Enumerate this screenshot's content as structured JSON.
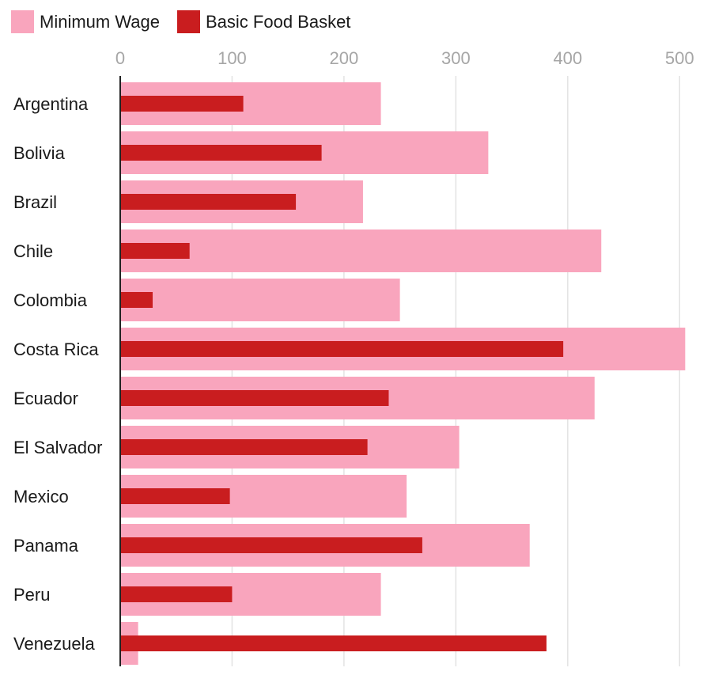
{
  "chart_data": {
    "type": "bar",
    "orientation": "horizontal",
    "categories": [
      "Argentina",
      "Bolivia",
      "Brazil",
      "Chile",
      "Colombia",
      "Costa Rica",
      "Ecuador",
      "El Salvador",
      "Mexico",
      "Panama",
      "Peru",
      "Venezuela"
    ],
    "series": [
      {
        "name": "Minimum Wage",
        "color": "#f9a5bd",
        "values": [
          233,
          329,
          217,
          430,
          250,
          505,
          424,
          303,
          256,
          366,
          233,
          16
        ]
      },
      {
        "name": "Basic Food Basket",
        "color": "#c91d1f",
        "values": [
          110,
          180,
          157,
          62,
          29,
          396,
          240,
          221,
          98,
          270,
          100,
          381
        ]
      }
    ],
    "x_ticks": [
      0,
      100,
      200,
      300,
      400,
      500
    ],
    "xlim": [
      0,
      505
    ],
    "grid": true,
    "legend_position": "top-left",
    "title": "",
    "xlabel": "",
    "ylabel": ""
  }
}
